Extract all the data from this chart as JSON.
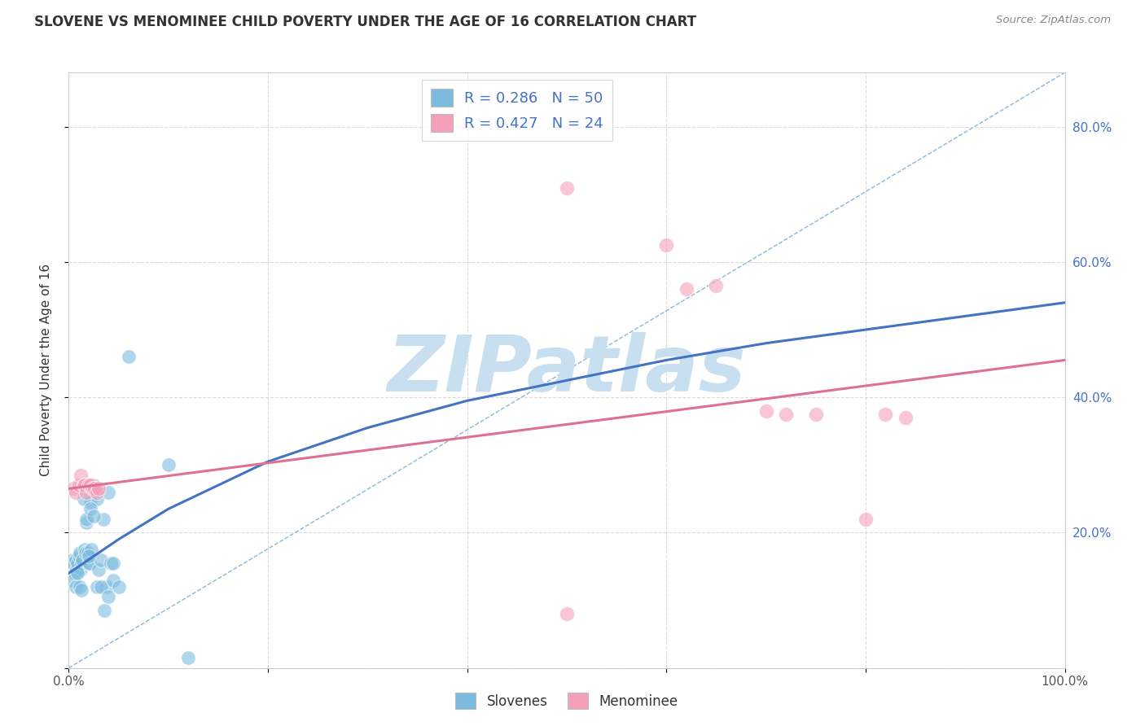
{
  "title": "SLOVENE VS MENOMINEE CHILD POVERTY UNDER THE AGE OF 16 CORRELATION CHART",
  "source": "Source: ZipAtlas.com",
  "ylabel": "Child Poverty Under the Age of 16",
  "xlim": [
    0,
    1.0
  ],
  "ylim": [
    0,
    0.88
  ],
  "xticks": [
    0.0,
    0.2,
    0.4,
    0.6,
    0.8,
    1.0
  ],
  "xtick_labels": [
    "0.0%",
    "",
    "",
    "",
    "",
    "100.0%"
  ],
  "yticks": [
    0.0,
    0.2,
    0.4,
    0.6,
    0.8
  ],
  "ytick_labels_right": [
    "",
    "20.0%",
    "40.0%",
    "60.0%",
    "80.0%"
  ],
  "slovene_color": "#7bbcde",
  "menominee_color": "#f4a0b8",
  "slovene_r": 0.286,
  "slovene_n": 50,
  "menominee_r": 0.427,
  "menominee_n": 24,
  "background_color": "#ffffff",
  "watermark_text": "ZIPatlas",
  "watermark_color": "#c8dff0",
  "blue_line_color": "#4472c4",
  "pink_line_color": "#e07090",
  "dash_line_color": "#7bafd4",
  "slovene_points_x": [
    0.003,
    0.004,
    0.005,
    0.006,
    0.007,
    0.008,
    0.009,
    0.01,
    0.011,
    0.012,
    0.013,
    0.014,
    0.015,
    0.016,
    0.017,
    0.018,
    0.019,
    0.02,
    0.021,
    0.022,
    0.023,
    0.025,
    0.026,
    0.028,
    0.03,
    0.032,
    0.035,
    0.038,
    0.04,
    0.042,
    0.045,
    0.005,
    0.007,
    0.009,
    0.011,
    0.013,
    0.015,
    0.018,
    0.02,
    0.022,
    0.025,
    0.028,
    0.032,
    0.036,
    0.04,
    0.045,
    0.05,
    0.06,
    0.1,
    0.12
  ],
  "slovene_points_y": [
    0.155,
    0.16,
    0.155,
    0.14,
    0.16,
    0.145,
    0.155,
    0.165,
    0.17,
    0.145,
    0.155,
    0.16,
    0.27,
    0.175,
    0.17,
    0.215,
    0.17,
    0.155,
    0.155,
    0.245,
    0.175,
    0.27,
    0.265,
    0.25,
    0.145,
    0.16,
    0.22,
    0.12,
    0.26,
    0.155,
    0.155,
    0.13,
    0.12,
    0.14,
    0.12,
    0.115,
    0.25,
    0.22,
    0.165,
    0.235,
    0.225,
    0.12,
    0.12,
    0.085,
    0.105,
    0.13,
    0.12,
    0.46,
    0.3,
    0.015
  ],
  "menominee_points_x": [
    0.005,
    0.007,
    0.01,
    0.012,
    0.015,
    0.016,
    0.018,
    0.02,
    0.022,
    0.024,
    0.026,
    0.028,
    0.03,
    0.5,
    0.6,
    0.62,
    0.65,
    0.7,
    0.72,
    0.75,
    0.8,
    0.82,
    0.84,
    0.5
  ],
  "menominee_points_y": [
    0.265,
    0.26,
    0.27,
    0.285,
    0.27,
    0.27,
    0.26,
    0.27,
    0.27,
    0.265,
    0.265,
    0.26,
    0.265,
    0.71,
    0.625,
    0.56,
    0.565,
    0.38,
    0.375,
    0.375,
    0.22,
    0.375,
    0.37,
    0.08
  ],
  "slovene_trend_x": [
    0.0,
    0.05,
    0.1,
    0.15,
    0.2,
    0.3,
    0.4,
    0.5,
    0.6,
    0.7,
    0.8,
    0.9,
    1.0
  ],
  "slovene_trend_y": [
    0.14,
    0.19,
    0.235,
    0.27,
    0.305,
    0.355,
    0.395,
    0.425,
    0.455,
    0.48,
    0.5,
    0.52,
    0.54
  ],
  "menominee_trend_x": [
    0.0,
    1.0
  ],
  "menominee_trend_y": [
    0.265,
    0.455
  ]
}
